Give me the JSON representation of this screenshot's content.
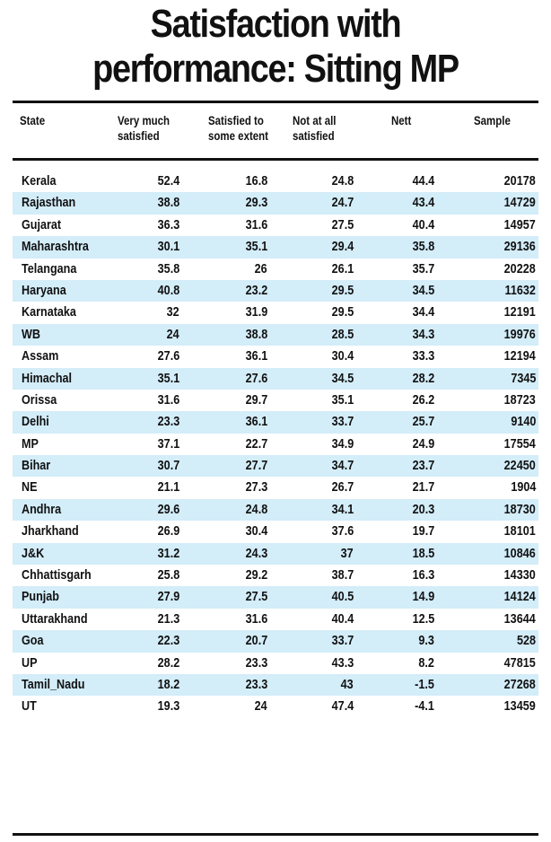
{
  "title_line1": "Satisfaction with",
  "title_line2": "performance: Sitting MP",
  "chart_data": {
    "type": "table",
    "title": "Satisfaction with performance: Sitting MP",
    "columns": [
      {
        "line1": "State",
        "line2": ""
      },
      {
        "line1": "Very much",
        "line2": "satisfied"
      },
      {
        "line1": "Satisfied to",
        "line2": "some extent"
      },
      {
        "line1": "Not at all",
        "line2": "satisfied"
      },
      {
        "line1": "Nett",
        "line2": ""
      },
      {
        "line1": "Sample",
        "line2": ""
      }
    ],
    "rows": [
      [
        "Kerala",
        "52.4",
        "16.8",
        "24.8",
        "44.4",
        "20178"
      ],
      [
        "Rajasthan",
        "38.8",
        "29.3",
        "24.7",
        "43.4",
        "14729"
      ],
      [
        "Gujarat",
        "36.3",
        "31.6",
        "27.5",
        "40.4",
        "14957"
      ],
      [
        "Maharashtra",
        "30.1",
        "35.1",
        "29.4",
        "35.8",
        "29136"
      ],
      [
        "Telangana",
        "35.8",
        "26",
        "26.1",
        "35.7",
        "20228"
      ],
      [
        "Haryana",
        "40.8",
        "23.2",
        "29.5",
        "34.5",
        "11632"
      ],
      [
        "Karnataka",
        "32",
        "31.9",
        "29.5",
        "34.4",
        "12191"
      ],
      [
        "WB",
        "24",
        "38.8",
        "28.5",
        "34.3",
        "19976"
      ],
      [
        "Assam",
        "27.6",
        "36.1",
        "30.4",
        "33.3",
        "12194"
      ],
      [
        "Himachal",
        "35.1",
        "27.6",
        "34.5",
        "28.2",
        "7345"
      ],
      [
        "Orissa",
        "31.6",
        "29.7",
        "35.1",
        "26.2",
        "18723"
      ],
      [
        "Delhi",
        "23.3",
        "36.1",
        "33.7",
        "25.7",
        "9140"
      ],
      [
        "MP",
        "37.1",
        "22.7",
        "34.9",
        "24.9",
        "17554"
      ],
      [
        "Bihar",
        "30.7",
        "27.7",
        "34.7",
        "23.7",
        "22450"
      ],
      [
        "NE",
        "21.1",
        "27.3",
        "26.7",
        "21.7",
        "1904"
      ],
      [
        "Andhra",
        "29.6",
        "24.8",
        "34.1",
        "20.3",
        "18730"
      ],
      [
        "Jharkhand",
        "26.9",
        "30.4",
        "37.6",
        "19.7",
        "18101"
      ],
      [
        "J&K",
        "31.2",
        "24.3",
        "37",
        "18.5",
        "10846"
      ],
      [
        "Chhattisgarh",
        "25.8",
        "29.2",
        "38.7",
        "16.3",
        "14330"
      ],
      [
        "Punjab",
        "27.9",
        "27.5",
        "40.5",
        "14.9",
        "14124"
      ],
      [
        "Uttarakhand",
        "21.3",
        "31.6",
        "40.4",
        "12.5",
        "13644"
      ],
      [
        "Goa",
        "22.3",
        "20.7",
        "33.7",
        "9.3",
        "528"
      ],
      [
        "UP",
        "28.2",
        "23.3",
        "43.3",
        "8.2",
        "47815"
      ],
      [
        "Tamil_Nadu",
        "18.2",
        "23.3",
        "43",
        "-1.5",
        "27268"
      ],
      [
        "UT",
        "19.3",
        "24",
        "47.4",
        "-4.1",
        "13459"
      ]
    ],
    "colors": {
      "stripe": "#d3edf9",
      "rule": "#111111",
      "text": "#111111"
    }
  }
}
